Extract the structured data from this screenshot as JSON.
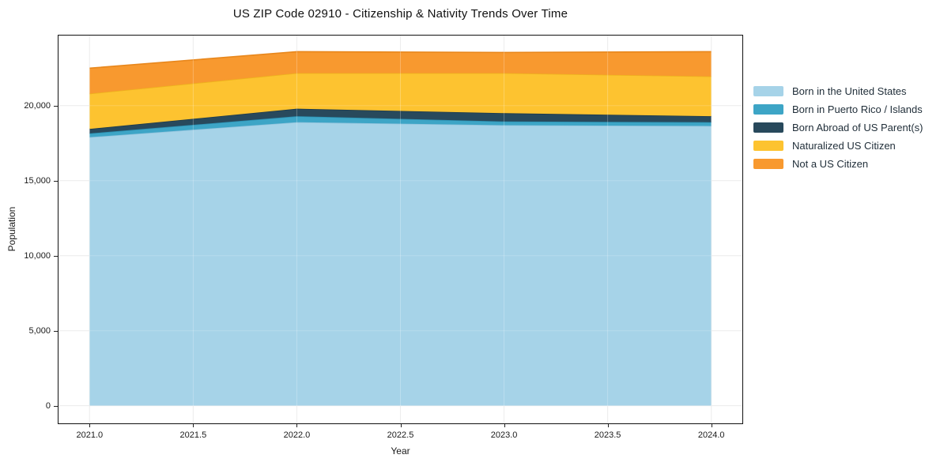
{
  "chart_data": {
    "type": "area",
    "stacked": true,
    "title": "US ZIP Code 02910 - Citizenship & Nativity Trends Over Time",
    "xlabel": "Year",
    "ylabel": "Population",
    "x": [
      2021,
      2022,
      2023,
      2024
    ],
    "series": [
      {
        "name": "Born in the United States",
        "color": "#a6d3e8",
        "edge_color": "#8fc2dc",
        "values": [
          17900,
          18900,
          18700,
          18650
        ]
      },
      {
        "name": "Born in Puerto Rico / Islands",
        "color": "#3da5c6",
        "edge_color": "#2b8fb0",
        "values": [
          250,
          400,
          250,
          250
        ]
      },
      {
        "name": "Born Abroad of US Parent(s)",
        "color": "#28495c",
        "edge_color": "#1d3a4a",
        "values": [
          300,
          500,
          550,
          400
        ]
      },
      {
        "name": "Naturalized US Citizen",
        "color": "#fdc330",
        "edge_color": "#edb31c",
        "values": [
          2350,
          2370,
          2670,
          2650
        ]
      },
      {
        "name": "Not a US Citizen",
        "color": "#f8992f",
        "edge_color": "#e8871c",
        "values": [
          1700,
          1430,
          1380,
          1650
        ]
      }
    ],
    "xlim": [
      2020.85,
      2024.15
    ],
    "ylim": [
      -1175,
      24675
    ],
    "x_ticks": [
      {
        "value": 2021.0,
        "label": "2021.0"
      },
      {
        "value": 2021.5,
        "label": "2021.5"
      },
      {
        "value": 2022.0,
        "label": "2022.0"
      },
      {
        "value": 2022.5,
        "label": "2022.5"
      },
      {
        "value": 2023.0,
        "label": "2023.0"
      },
      {
        "value": 2023.5,
        "label": "2023.5"
      },
      {
        "value": 2024.0,
        "label": "2024.0"
      }
    ],
    "y_ticks": [
      {
        "value": 0,
        "label": "0"
      },
      {
        "value": 5000,
        "label": "5,000"
      },
      {
        "value": 10000,
        "label": "10,000"
      },
      {
        "value": 15000,
        "label": "15,000"
      },
      {
        "value": 20000,
        "label": "20,000"
      }
    ],
    "grid": true,
    "grid_color": "#e7e7e7",
    "axis_color": "#111111",
    "legend_position": "right-outside"
  }
}
